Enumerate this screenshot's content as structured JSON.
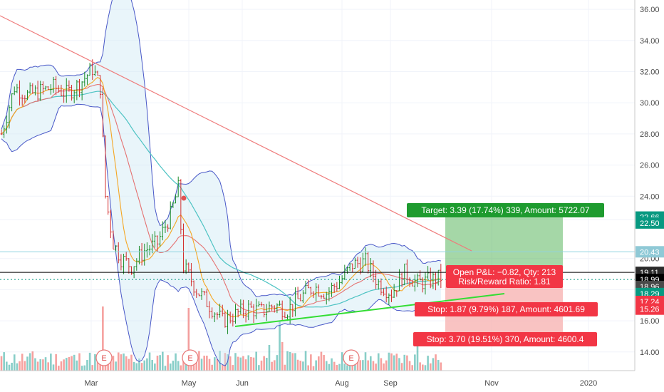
{
  "price_axis": {
    "ticks": [
      "36.00",
      "34.00",
      "32.00",
      "30.00",
      "28.00",
      "26.00",
      "24.00",
      "22.50",
      "20.00",
      "18.00",
      "16.00",
      "14.00"
    ],
    "min": 12.8,
    "max": 36.6
  },
  "time_axis": {
    "labels": [
      "Mar",
      "May",
      "Jun",
      "Aug",
      "Sep",
      "Nov",
      "2020"
    ]
  },
  "price_badges": [
    {
      "label": "22.66",
      "value": 22.66,
      "color": "#089981"
    },
    {
      "label": "22.50",
      "value": 22.28,
      "color": "#089981"
    },
    {
      "label": "20.43",
      "value": 20.43,
      "color": "#8fc9d6"
    },
    {
      "label": "19.11",
      "value": 19.11,
      "color": "#2b2b2b"
    },
    {
      "label": "18.99",
      "value": 18.65,
      "color": "#000000"
    },
    {
      "label": "18.96",
      "value": 18.2,
      "color": "#4a4a4a"
    },
    {
      "label": "18.29",
      "value": 17.75,
      "color": "#089981"
    },
    {
      "label": "17.24",
      "value": 17.24,
      "color": "#f23645"
    },
    {
      "label": "15.26",
      "value": 16.75,
      "color": "#f23645"
    }
  ],
  "position_tool": {
    "target_label": "Target: 3.39 (17.74%) 339, Amount: 5722.07",
    "pnl_label": "Open P&L: −0.82, Qty: 213",
    "rr_label": "Risk/Reward Ratio: 1.81",
    "stop1_label": "Stop: 1.87 (9.79%) 187, Amount: 4601.69",
    "stop2_label": "Stop: 3.70 (19.51%) 370, Amount: 4600.4",
    "colors": {
      "profit": "#28a745",
      "loss": "#f23645"
    }
  },
  "earnings_markers": [
    "E",
    "E",
    "E"
  ],
  "colors": {
    "up": "#26a69a",
    "down": "#ef5350",
    "candle_up": "#1b8c2a",
    "candle_down": "#d32f2f",
    "bb": "#4857c7",
    "ma_fast": "#f5a623",
    "ma_mid": "#e57373",
    "ma_slow": "#4dc3c3",
    "trend_down": "#ef7c7c",
    "trend_up": "#33dd33"
  },
  "levels": {
    "black_line": 19.11,
    "green_dotted": 18.65,
    "cyan_line": 20.43
  }
}
